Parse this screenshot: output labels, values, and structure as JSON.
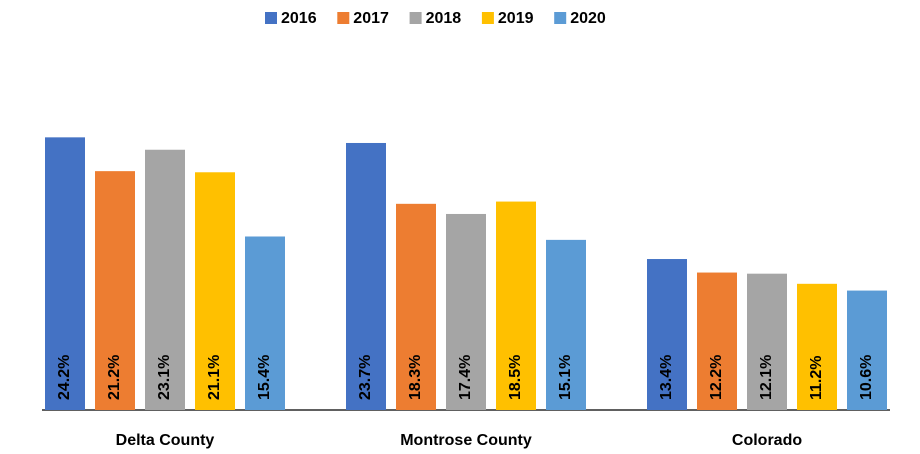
{
  "chart_data": {
    "type": "bar",
    "categories": [
      "Delta County",
      "Montrose County",
      "Colorado"
    ],
    "series": [
      {
        "name": "2016",
        "color": "#4472c4",
        "values": [
          24.2,
          23.7,
          13.4
        ],
        "value_labels": [
          "24.2%",
          "23.7%",
          "13.4%"
        ]
      },
      {
        "name": "2017",
        "color": "#ed7d31",
        "values": [
          21.2,
          18.3,
          12.2
        ],
        "value_labels": [
          "21.2%",
          "18.3%",
          "12.2%"
        ]
      },
      {
        "name": "2018",
        "color": "#a5a5a5",
        "values": [
          23.1,
          17.4,
          12.1
        ],
        "value_labels": [
          "23.1%",
          "17.4%",
          "12.1%"
        ]
      },
      {
        "name": "2019",
        "color": "#ffc000",
        "values": [
          21.1,
          18.5,
          11.2
        ],
        "value_labels": [
          "21.1%",
          "18.5%",
          "11.2%"
        ]
      },
      {
        "name": "2020",
        "color": "#5b9bd5",
        "values": [
          15.4,
          15.1,
          10.6
        ],
        "value_labels": [
          "15.4%",
          "15.1%",
          "10.6%"
        ]
      }
    ],
    "ylim": [
      0,
      30
    ],
    "legend": "top"
  }
}
